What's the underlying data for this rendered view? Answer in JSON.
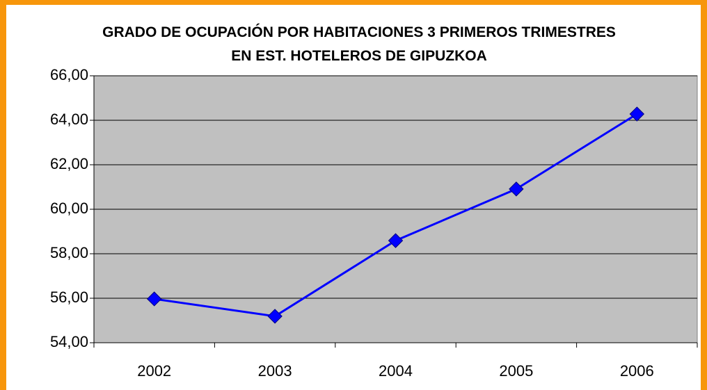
{
  "chart_data": {
    "type": "line",
    "title": "GRADO DE OCUPACIÓN POR HABITACIONES 3 PRIMEROS TRIMESTRES EN EST. HOTELEROS DE GIPUZKOA",
    "categories": [
      "2002",
      "2003",
      "2004",
      "2005",
      "2006"
    ],
    "series": [
      {
        "name": "Grado de ocupación",
        "color": "#0000ff",
        "values": [
          55.97,
          55.19,
          58.59,
          60.91,
          64.28
        ]
      }
    ],
    "ylim": [
      54,
      66
    ],
    "yticks": [
      {
        "value": 54,
        "label": "54,00"
      },
      {
        "value": 56,
        "label": "56,00"
      },
      {
        "value": 58,
        "label": "58,00"
      },
      {
        "value": 60,
        "label": "60,00"
      },
      {
        "value": 62,
        "label": "62,00"
      },
      {
        "value": 64,
        "label": "64,00"
      },
      {
        "value": 66,
        "label": "66,00"
      }
    ],
    "grid": true,
    "plot_color": "#c0c0c0"
  }
}
